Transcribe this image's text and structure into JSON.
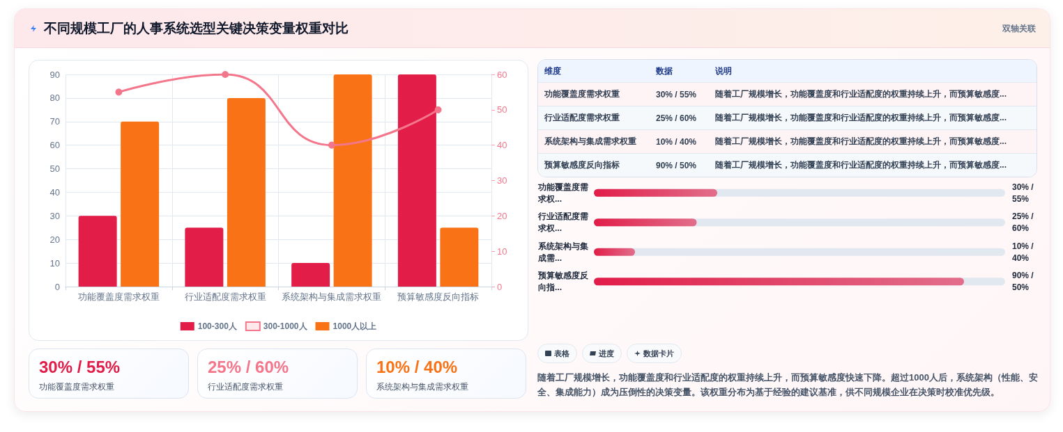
{
  "chart_data": [
    {
      "type": "bar",
      "title": "不同规模工厂的人事系统选型关键决策变量权重对比",
      "annotations": [
        "双轴关联"
      ],
      "categories": [
        "功能覆盖度需求权重",
        "行业适配度需求权重",
        "系统架构与集成需求权重",
        "预算敏感度反向指标"
      ],
      "series": [
        {
          "name": "100-300人",
          "color": "#e11d48",
          "values": [
            30,
            25,
            10,
            90
          ]
        },
        {
          "name": "300-1000人",
          "color": "#f4768a",
          "type": "line",
          "axis": "y2",
          "values": [
            55,
            60,
            40,
            50
          ]
        },
        {
          "name": "1000人以上",
          "color": "#f97316",
          "values": [
            70,
            80,
            90,
            25
          ]
        }
      ],
      "ylim": [
        0,
        90
      ],
      "yticks": [
        0,
        10,
        20,
        30,
        40,
        50,
        60,
        70,
        80,
        90
      ],
      "y2lim": [
        0,
        60
      ],
      "y2ticks": [
        0,
        10,
        20,
        30,
        40,
        50,
        60
      ],
      "grid": true,
      "legend": "bottom",
      "marker": "circle"
    },
    {
      "type": "other",
      "annotations": [
        "维度",
        "数据",
        "说明",
        "功能覆盖度需求权重",
        "30% / 55%",
        "随着工厂规模增长，功能覆盖度和行业适配度的权重持续上升，而预算敏感度...",
        "行业适配度需求权重",
        "25% / 60%",
        "随着工厂规模增长，功能覆盖度和行业适配度的权重持续上升，而预算敏感度...",
        "系统架构与集成需求权重",
        "10% / 40%",
        "随着工厂规模增长，功能覆盖度和行业适配度的权重持续上升，而预算敏感度...",
        "预算敏感度反向指标",
        "90% / 50%",
        "随着工厂规模增长，功能覆盖度和行业适配度的权重持续上升，而预算敏感度..."
      ]
    },
    {
      "type": "bar",
      "orientation": "horizontal",
      "categories": [
        "功能覆盖度需求权...",
        "行业适配度需求权...",
        "系统架构与集成需...",
        "预算敏感度反向指..."
      ],
      "values": [
        30,
        25,
        10,
        90
      ],
      "color": "#e11d48",
      "xlim": [
        0,
        100
      ],
      "value_labels": [
        "30% / 55%",
        "25% / 60%",
        "10% / 40%",
        "90% / 50%"
      ]
    },
    {
      "type": "other",
      "annotations": [
        "30% / 55%",
        "功能覆盖度需求权重",
        "25% / 60%",
        "行业适配度需求权重",
        "10% / 40%",
        "系统架构与集成需求权重"
      ]
    },
    {
      "type": "other",
      "annotations": [
        "表格",
        "进度",
        "数据卡片",
        "随着工厂规模增长，功能覆盖度和行业适配度的权重持续上升，而预算敏感度快速下降。超过1000人后，系统架构（性能、安全、集成能力）成为压倒性的决策变量。该权重分布为基于经验的建议基准，供不同规模企业在决策时校准优先级。"
      ]
    }
  ]
}
